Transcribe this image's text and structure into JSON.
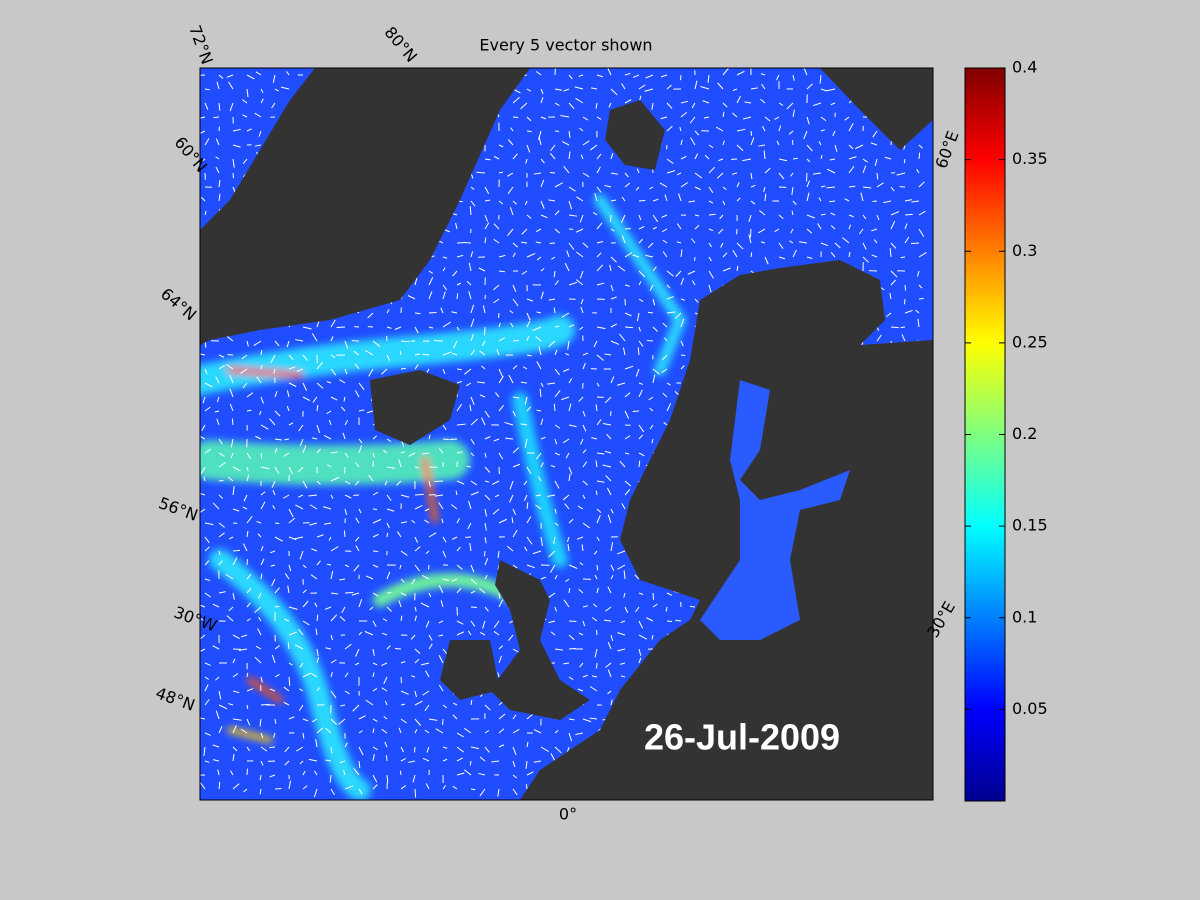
{
  "title": "Every 5 vector shown",
  "date_label": "26-Jul-2009",
  "grid_labels": [
    "72°N",
    "80°N",
    "60°N",
    "64°N",
    "56°N",
    "30°W",
    "48°N",
    "0°",
    "30°E",
    "60°E"
  ],
  "colorbar": {
    "lim": [
      0,
      0.4
    ],
    "ticks": [
      0.05,
      0.1,
      0.15,
      0.2,
      0.25,
      0.3,
      0.35,
      0.4
    ]
  }
}
